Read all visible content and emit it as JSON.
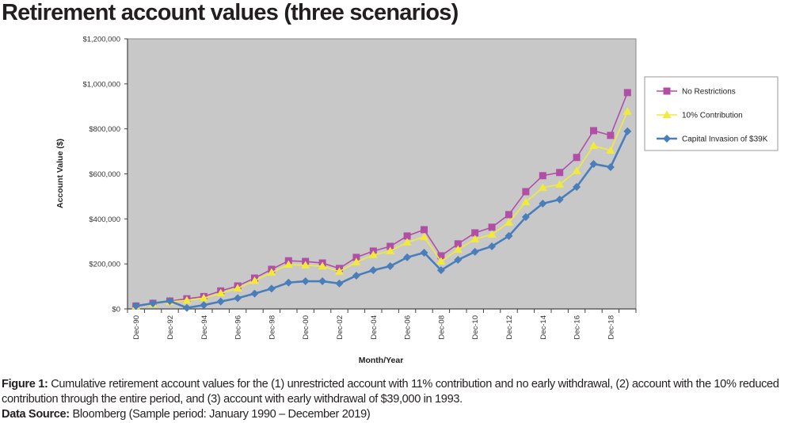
{
  "title": "Retirement account values (three scenarios)",
  "caption": {
    "figure_label": "Figure 1:",
    "figure_text": "Cumulative retirement account values for the (1) unrestricted account with 11% contribution and no early withdrawal, (2) account with the 10% reduced contribution through the entire period, and (3) account with early withdrawal of $39,000 in 1993.",
    "source_label": "Data Source:",
    "source_text": "Bloomberg (Sample period: January 1990 – December 2019)"
  },
  "chart_data": {
    "type": "line",
    "title": "Retirement account values (three scenarios)",
    "xlabel": "Month/Year",
    "ylabel": "Account Value ($)",
    "ylim": [
      0,
      1200000
    ],
    "yticks": [
      0,
      200000,
      400000,
      600000,
      800000,
      1000000,
      1200000
    ],
    "ytick_labels": [
      "$0",
      "$200,000",
      "$400,000",
      "$600,000",
      "$800,000",
      "$1,000,000",
      "$1,200,000"
    ],
    "grid": false,
    "legend": "right",
    "x": [
      "Dec-90",
      "Dec-91",
      "Dec-92",
      "Dec-93",
      "Dec-94",
      "Dec-95",
      "Dec-96",
      "Dec-97",
      "Dec-98",
      "Dec-99",
      "Dec-00",
      "Dec-01",
      "Dec-02",
      "Dec-03",
      "Dec-04",
      "Dec-05",
      "Dec-06",
      "Dec-07",
      "Dec-08",
      "Dec-09",
      "Dec-10",
      "Dec-11",
      "Dec-12",
      "Dec-13",
      "Dec-14",
      "Dec-15",
      "Dec-16",
      "Dec-17",
      "Dec-18",
      "Dec-19"
    ],
    "xtick_labels": [
      "Dec-90",
      "Dec-92",
      "Dec-94",
      "Dec-96",
      "Dec-98",
      "Dec-00",
      "Dec-02",
      "Dec-04",
      "Dec-06",
      "Dec-08",
      "Dec-10",
      "Dec-12",
      "Dec-14",
      "Dec-16",
      "Dec-18"
    ],
    "series": [
      {
        "name": "No Restrictions",
        "color": "#b04fa5",
        "marker": "square",
        "values": [
          13000,
          25000,
          35000,
          45000,
          55000,
          80000,
          102000,
          137000,
          176000,
          214000,
          211000,
          204000,
          180000,
          229000,
          257000,
          278000,
          324000,
          352000,
          236000,
          289000,
          338000,
          363000,
          419000,
          521000,
          592000,
          606000,
          673000,
          792000,
          771000,
          961000
        ]
      },
      {
        "name": "10% Contribution",
        "color": "#f2ea3a",
        "marker": "triangle",
        "values": [
          12000,
          23000,
          32000,
          38000,
          48000,
          70000,
          92000,
          125000,
          162000,
          197000,
          194000,
          190000,
          166000,
          208000,
          240000,
          257000,
          296000,
          320000,
          211000,
          264000,
          310000,
          331000,
          384000,
          475000,
          539000,
          553000,
          613000,
          725000,
          704000,
          877000
        ]
      },
      {
        "name": "Capital Invasion of $39K",
        "color": "#4a7ebb",
        "marker": "diamond",
        "values": [
          13000,
          25000,
          35000,
          5000,
          17000,
          33000,
          48000,
          68000,
          90000,
          117000,
          123000,
          123000,
          113000,
          148000,
          172000,
          190000,
          229000,
          250000,
          172000,
          218000,
          254000,
          278000,
          324000,
          408000,
          468000,
          486000,
          542000,
          644000,
          630000,
          789000
        ]
      }
    ]
  }
}
